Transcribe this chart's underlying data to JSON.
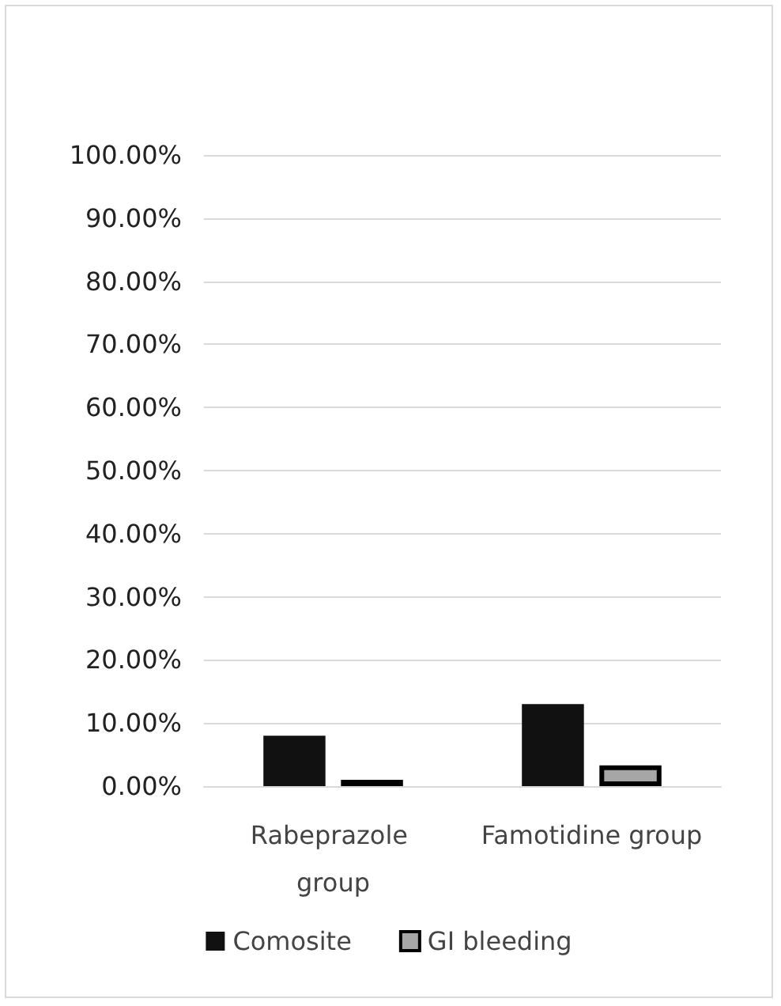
{
  "chart_data": {
    "type": "bar",
    "categories": [
      "Rabeprazole group",
      "Famotidine group"
    ],
    "series": [
      {
        "name": "Comosite",
        "color": "#111111",
        "values": [
          8.0,
          13.0
        ]
      },
      {
        "name": "GI bleeding",
        "color": "#a6a6a6",
        "values": [
          1.0,
          3.3
        ]
      }
    ],
    "ylim": [
      0,
      100
    ],
    "yticks": [
      {
        "value": 0,
        "label": "0.00%"
      },
      {
        "value": 10,
        "label": "10.00%"
      },
      {
        "value": 20,
        "label": "20.00%"
      },
      {
        "value": 30,
        "label": "30.00%"
      },
      {
        "value": 40,
        "label": "40.00%"
      },
      {
        "value": 50,
        "label": "50.00%"
      },
      {
        "value": 60,
        "label": "60.00%"
      },
      {
        "value": 70,
        "label": "70.00%"
      },
      {
        "value": 80,
        "label": "80.00%"
      },
      {
        "value": 90,
        "label": "90.00%"
      },
      {
        "value": 100,
        "label": "100.00%"
      }
    ],
    "grid": "y",
    "legend": "bottom"
  }
}
